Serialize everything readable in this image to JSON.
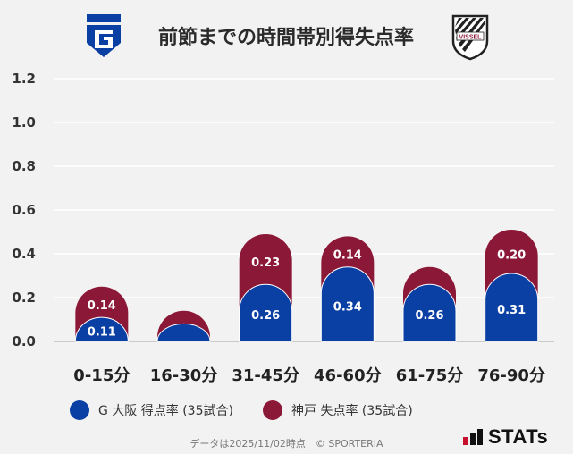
{
  "header": {
    "title": "前節までの時間帯別得失点率",
    "home_crest": "gamba-osaka-crest-icon",
    "away_crest": "vissel-kobe-crest-icon",
    "away_crest_text": "VISSEL"
  },
  "chart_data": {
    "type": "bar",
    "stacked": true,
    "title": "前節までの時間帯別得失点率",
    "categories": [
      "0-15分",
      "16-30分",
      "31-45分",
      "46-60分",
      "61-75分",
      "76-90分"
    ],
    "series": [
      {
        "name": "G大阪 得点率 (35試合)",
        "color": "#0a3fa3",
        "values": [
          0.11,
          0.08,
          0.26,
          0.34,
          0.26,
          0.31
        ],
        "labels": [
          "0.11",
          "",
          "0.26",
          "0.34",
          "0.26",
          "0.31"
        ]
      },
      {
        "name": "神戸 失点率 (35試合)",
        "color": "#8c1838",
        "values": [
          0.14,
          0.06,
          0.23,
          0.14,
          0.08,
          0.2
        ],
        "labels": [
          "0.14",
          "",
          "0.23",
          "0.14",
          "",
          "0.20"
        ]
      }
    ],
    "ylim": [
      0,
      1.2
    ],
    "yticks": [
      "0.0",
      "0.2",
      "0.4",
      "0.6",
      "0.8",
      "1.0",
      "1.2"
    ],
    "xlabel": "",
    "ylabel": "",
    "grid": true,
    "legend": "bottom"
  },
  "legend": {
    "items": [
      {
        "label": "G 大阪 得点率 (35試合)",
        "color": "#0a3fa3"
      },
      {
        "label": "神戸 失点率 (35試合)",
        "color": "#8c1838"
      }
    ]
  },
  "footer": {
    "note": "データは2025/11/02時点　© SPORTERIA",
    "brand": "STATs"
  }
}
